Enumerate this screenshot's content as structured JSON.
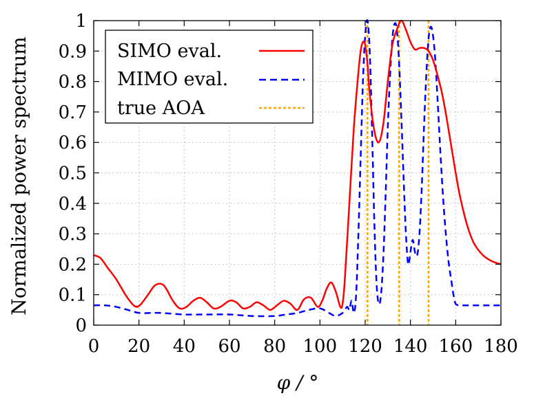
{
  "chart_data": {
    "type": "line",
    "title": "",
    "xlabel": "φ / °",
    "ylabel": "Normalized power spectrum",
    "xlim": [
      0,
      180
    ],
    "ylim": [
      0,
      1
    ],
    "xticks": [
      0,
      20,
      40,
      60,
      80,
      100,
      120,
      140,
      160,
      180
    ],
    "yticks": [
      0,
      0.1,
      0.2,
      0.3,
      0.4,
      0.5,
      0.6,
      0.7,
      0.8,
      0.9,
      1
    ],
    "xtick_labels": [
      "0",
      "20",
      "40",
      "60",
      "80",
      "100",
      "120",
      "140",
      "160",
      "180"
    ],
    "ytick_labels": [
      "0",
      "0.1",
      "0.2",
      "0.3",
      "0.4",
      "0.5",
      "0.6",
      "0.7",
      "0.8",
      "0.9",
      "1"
    ],
    "grid": true,
    "legend_position": "top-left",
    "series": [
      {
        "name": "SIMO eval.",
        "color": "#ff0000",
        "style": "solid",
        "x": [
          0,
          3,
          6,
          10,
          14,
          17,
          19,
          21,
          24,
          27,
          30,
          32,
          35,
          38,
          41,
          44,
          47,
          50,
          53,
          56,
          60,
          63,
          66,
          69,
          72,
          75,
          78,
          81,
          84,
          87,
          90,
          93,
          96,
          99,
          101,
          103,
          105,
          107,
          109,
          110,
          111,
          113,
          115,
          117,
          118,
          119,
          120,
          121,
          122,
          124,
          126,
          128,
          130,
          132,
          134,
          136,
          138,
          140,
          142,
          144,
          146,
          148,
          150,
          152,
          154,
          156,
          158,
          160,
          162,
          165,
          168,
          172,
          176,
          180
        ],
        "y": [
          0.23,
          0.22,
          0.19,
          0.15,
          0.1,
          0.07,
          0.06,
          0.07,
          0.1,
          0.13,
          0.135,
          0.12,
          0.08,
          0.055,
          0.06,
          0.08,
          0.09,
          0.075,
          0.055,
          0.06,
          0.08,
          0.075,
          0.055,
          0.06,
          0.075,
          0.065,
          0.05,
          0.065,
          0.08,
          0.07,
          0.05,
          0.085,
          0.09,
          0.06,
          0.08,
          0.12,
          0.14,
          0.11,
          0.06,
          0.07,
          0.15,
          0.4,
          0.65,
          0.83,
          0.9,
          0.93,
          0.92,
          0.86,
          0.76,
          0.64,
          0.6,
          0.66,
          0.8,
          0.92,
          0.97,
          1.0,
          0.97,
          0.93,
          0.905,
          0.91,
          0.91,
          0.9,
          0.87,
          0.82,
          0.76,
          0.68,
          0.59,
          0.5,
          0.42,
          0.33,
          0.27,
          0.23,
          0.21,
          0.2
        ]
      },
      {
        "name": "MIMO eval.",
        "color": "#0000ff",
        "style": "dashed",
        "x": [
          0,
          5,
          10,
          15,
          20,
          25,
          30,
          40,
          50,
          60,
          70,
          80,
          85,
          90,
          95,
          100,
          104,
          107,
          110,
          112,
          113,
          114,
          115,
          116,
          117,
          118,
          119,
          120,
          121,
          122,
          123,
          124,
          125,
          126,
          127,
          128,
          129,
          130,
          131,
          132,
          133,
          134,
          135,
          136,
          137,
          138,
          139,
          140,
          141,
          142,
          143,
          144,
          145,
          146,
          147,
          148,
          149,
          150,
          151,
          152,
          153,
          154,
          155,
          156,
          157,
          158,
          159,
          160,
          162,
          165,
          170,
          175,
          180
        ],
        "y": [
          0.065,
          0.065,
          0.06,
          0.05,
          0.04,
          0.04,
          0.04,
          0.035,
          0.035,
          0.035,
          0.03,
          0.03,
          0.035,
          0.04,
          0.05,
          0.055,
          0.04,
          0.03,
          0.04,
          0.06,
          0.05,
          0.08,
          0.04,
          0.1,
          0.3,
          0.55,
          0.8,
          0.95,
          1.0,
          0.9,
          0.65,
          0.35,
          0.14,
          0.07,
          0.1,
          0.22,
          0.42,
          0.65,
          0.82,
          0.94,
          0.99,
          0.97,
          0.86,
          0.68,
          0.48,
          0.3,
          0.2,
          0.24,
          0.28,
          0.24,
          0.23,
          0.3,
          0.45,
          0.65,
          0.82,
          0.94,
          0.98,
          0.95,
          0.87,
          0.74,
          0.6,
          0.47,
          0.36,
          0.27,
          0.2,
          0.15,
          0.1,
          0.07,
          0.065,
          0.065,
          0.065,
          0.065,
          0.065
        ]
      },
      {
        "name": "true AOA",
        "color": "#ffa500",
        "style": "dotted-vertical",
        "x_values": [
          121,
          135,
          148
        ]
      }
    ]
  }
}
